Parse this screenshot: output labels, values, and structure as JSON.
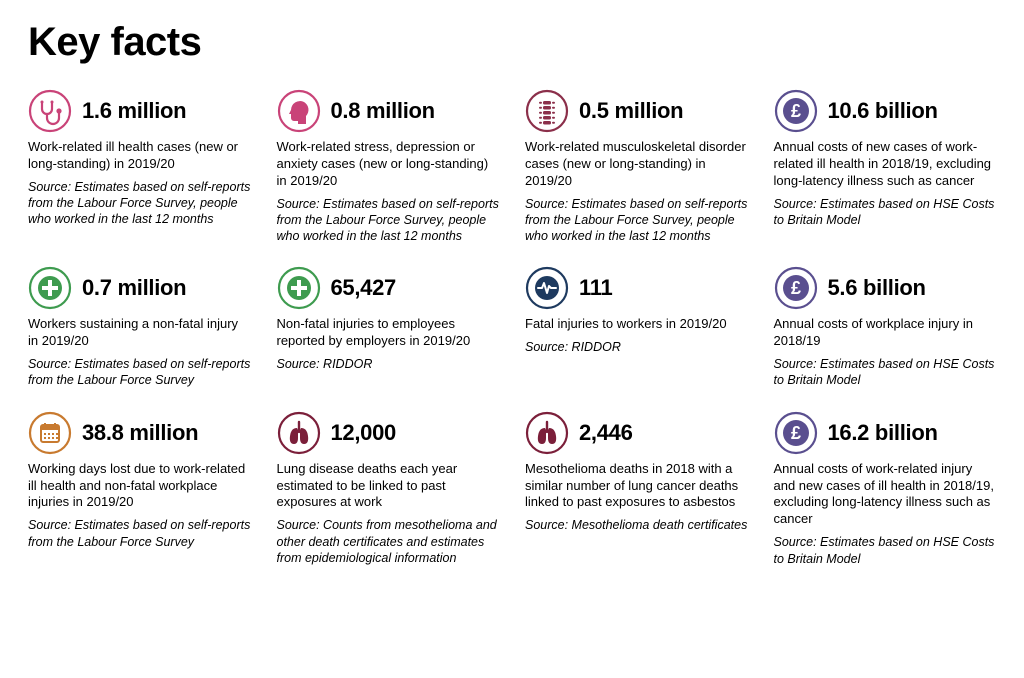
{
  "title": "Key facts",
  "colors": {
    "pink": "#c94378",
    "maroon": "#8b2f4a",
    "purple": "#5a4f8f",
    "green": "#3e9b4f",
    "green2": "#3e9b4f",
    "navy": "#1e3a5f",
    "orange": "#c87a2f",
    "darkred": "#7b1f3a",
    "darkred2": "#7b1f3a"
  },
  "facts": [
    {
      "icon": "stethoscope",
      "color_key": "pink",
      "stat": "1.6 million",
      "desc": "Work-related ill health cases (new or long-standing) in 2019/20",
      "source": "Source: Estimates based on self-reports from the Labour Force Survey, people who worked in the last 12 months"
    },
    {
      "icon": "head",
      "color_key": "pink",
      "stat": "0.8 million",
      "desc": "Work-related stress, depression or anxiety cases (new or long-standing) in 2019/20",
      "source": "Source: Estimates based on self-reports from the Labour Force Survey, people who worked in the last 12 months"
    },
    {
      "icon": "spine",
      "color_key": "maroon",
      "stat": "0.5 million",
      "desc": "Work-related musculoskeletal disorder cases (new or long-standing) in 2019/20",
      "source": "Source: Estimates based on self-reports from the Labour Force Survey, people who worked in the last 12 months"
    },
    {
      "icon": "pound",
      "color_key": "purple",
      "stat": "10.6 billion",
      "desc": "Annual costs of new cases of work-related ill health in 2018/19, excluding long-latency illness such as cancer",
      "source": "Source: Estimates based on HSE Costs to Britain Model"
    },
    {
      "icon": "plus",
      "color_key": "green",
      "stat": "0.7 million",
      "desc": "Workers sustaining a non-fatal injury in 2019/20",
      "source": "Source: Estimates based on self-reports from the Labour Force Survey"
    },
    {
      "icon": "plus",
      "color_key": "green2",
      "stat": "65,427",
      "desc": "Non-fatal injuries to employees reported by employers in 2019/20",
      "source": "Source: RIDDOR"
    },
    {
      "icon": "pulse",
      "color_key": "navy",
      "stat": "111",
      "desc": "Fatal injuries to workers in 2019/20",
      "source": "Source: RIDDOR"
    },
    {
      "icon": "pound",
      "color_key": "purple",
      "stat": "5.6 billion",
      "desc": "Annual costs of workplace injury in 2018/19",
      "source": "Source: Estimates based on HSE Costs to Britain Model"
    },
    {
      "icon": "calendar",
      "color_key": "orange",
      "stat": "38.8 million",
      "desc": "Working days lost due to work-related ill health and non-fatal workplace injuries in 2019/20",
      "source": "Source: Estimates based on self-reports from the Labour Force Survey"
    },
    {
      "icon": "lungs",
      "color_key": "darkred",
      "stat": "12,000",
      "desc": "Lung disease deaths each year estimated to be linked to past exposures at work",
      "source": "Source: Counts from mesothelioma and other death certificates and estimates from epidemiological information"
    },
    {
      "icon": "lungs",
      "color_key": "darkred2",
      "stat": "2,446",
      "desc": "Mesothelioma deaths in 2018 with a similar number of lung cancer deaths linked to past exposures to asbestos",
      "source": "Source: Mesothelioma death certificates"
    },
    {
      "icon": "pound",
      "color_key": "purple",
      "stat": "16.2 billion",
      "desc": "Annual costs of work-related injury and new cases of ill health in 2018/19, excluding long-latency illness such as cancer",
      "source": "Source: Estimates based on HSE Costs to Britain Model"
    }
  ]
}
